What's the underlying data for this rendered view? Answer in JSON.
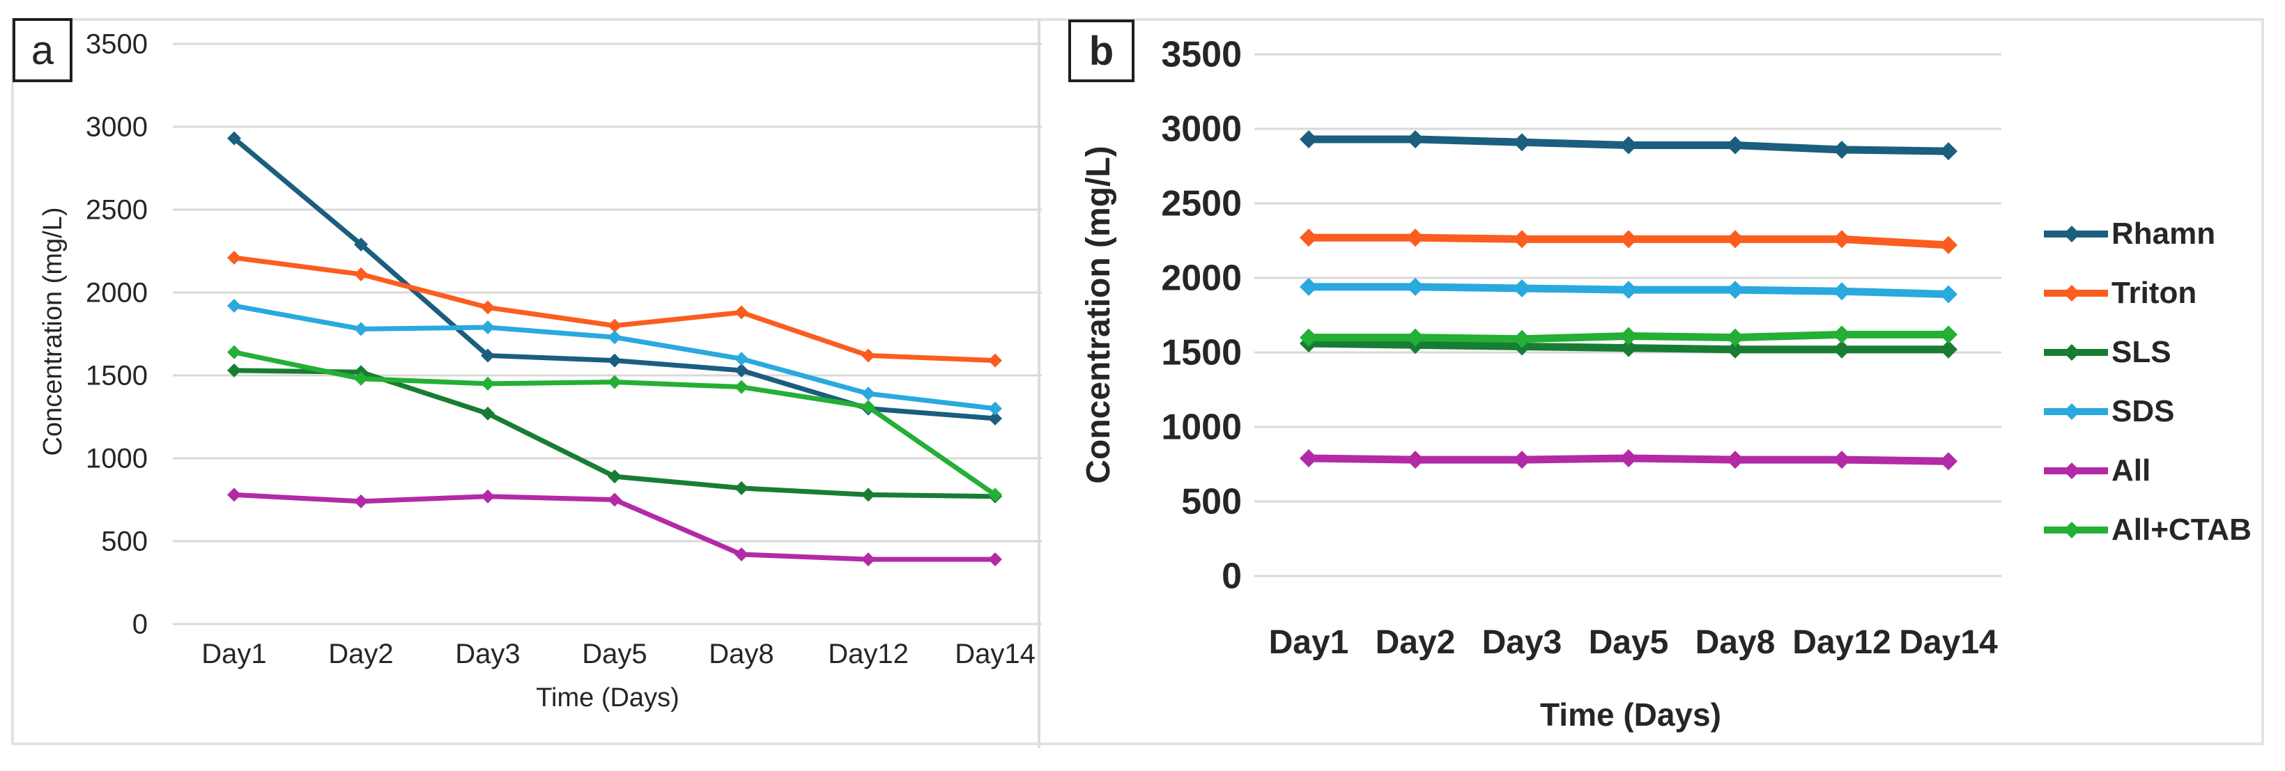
{
  "figure": {
    "description_visible_text_only": "Two line charts of surfactant concentration over time",
    "colors": {
      "grid": "#d9d9d9",
      "outer_border": "#e3e3e3",
      "panel_label_border": "#1f1f1f",
      "text": "#262626",
      "background": "#ffffff"
    },
    "series_colors": {
      "Rhamn": "#1b5e7d",
      "Triton": "#fb5d1f",
      "SLS": "#187d33",
      "SDS": "#29a9de",
      "All": "#b32aa6",
      "All+CTAB": "#24af35"
    }
  },
  "chart_data": [
    {
      "id": "a",
      "panel_label": "a",
      "type": "line",
      "title": "",
      "xlabel": "Time (Days)",
      "ylabel": "Concentration (mg/L)",
      "categories": [
        "Day1",
        "Day2",
        "Day3",
        "Day5",
        "Day8",
        "Day12",
        "Day14"
      ],
      "ylim": [
        0,
        3500
      ],
      "ytick_step": 500,
      "yticks": [
        0,
        500,
        1000,
        1500,
        2000,
        2500,
        3000,
        3500
      ],
      "grid": true,
      "legend_position": "none",
      "marker_style": "diamond",
      "series": [
        {
          "name": "Rhamn",
          "color": "#1b5e7d",
          "values": [
            2930,
            2290,
            1620,
            1590,
            1530,
            1300,
            1240
          ]
        },
        {
          "name": "Triton",
          "color": "#fb5d1f",
          "values": [
            2210,
            2110,
            1910,
            1800,
            1880,
            1620,
            1590
          ]
        },
        {
          "name": "SLS",
          "color": "#187d33",
          "values": [
            1530,
            1520,
            1270,
            890,
            820,
            780,
            770
          ]
        },
        {
          "name": "SDS",
          "color": "#29a9de",
          "values": [
            1920,
            1780,
            1790,
            1730,
            1600,
            1390,
            1300
          ]
        },
        {
          "name": "All",
          "color": "#b32aa6",
          "values": [
            780,
            740,
            770,
            750,
            420,
            390,
            390
          ]
        },
        {
          "name": "All+CTAB",
          "color": "#24af35",
          "values": [
            1640,
            1480,
            1450,
            1460,
            1430,
            1310,
            780
          ]
        }
      ]
    },
    {
      "id": "b",
      "panel_label": "b",
      "type": "line",
      "title": "",
      "xlabel": "Time (Days)",
      "ylabel": "Concentration (mg/L)",
      "categories": [
        "Day1",
        "Day2",
        "Day3",
        "Day5",
        "Day8",
        "Day12",
        "Day14"
      ],
      "ylim": [
        0,
        3500
      ],
      "ytick_step": 500,
      "yticks": [
        0,
        500,
        1000,
        1500,
        2000,
        2500,
        3000,
        3500
      ],
      "grid": true,
      "legend_position": "right",
      "legend_entries": [
        "Rhamn",
        "Triton",
        "SLS",
        "SDS",
        "All",
        "All+CTAB"
      ],
      "marker_style": "diamond",
      "series": [
        {
          "name": "Rhamn",
          "color": "#1b5e7d",
          "values": [
            2930,
            2930,
            2910,
            2890,
            2890,
            2860,
            2850
          ]
        },
        {
          "name": "Triton",
          "color": "#fb5d1f",
          "values": [
            2270,
            2270,
            2260,
            2260,
            2260,
            2260,
            2220
          ]
        },
        {
          "name": "SLS",
          "color": "#187d33",
          "values": [
            1560,
            1550,
            1540,
            1530,
            1520,
            1520,
            1520
          ]
        },
        {
          "name": "SDS",
          "color": "#29a9de",
          "values": [
            1940,
            1940,
            1930,
            1920,
            1920,
            1910,
            1890
          ]
        },
        {
          "name": "All",
          "color": "#b32aa6",
          "values": [
            790,
            780,
            780,
            790,
            780,
            780,
            770
          ]
        },
        {
          "name": "All+CTAB",
          "color": "#24af35",
          "values": [
            1600,
            1600,
            1590,
            1610,
            1600,
            1620,
            1620
          ]
        }
      ]
    }
  ]
}
